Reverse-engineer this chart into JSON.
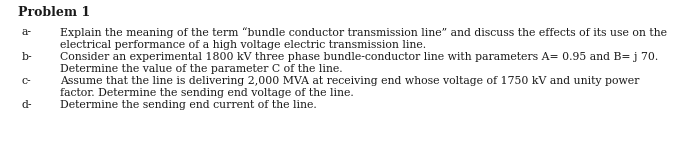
{
  "title": "Problem 1",
  "lines": [
    {
      "label": "a-",
      "text_line1": "Explain the meaning of the term “bundle conductor transmission line” and discuss the effects of its use on the",
      "text_line2": "electrical performance of a high voltage electric transmission line."
    },
    {
      "label": "b-",
      "text_line1": "Consider an experimental 1800 kV three phase bundle-conductor line with parameters A= 0.95 and B= j 70.",
      "text_line2": "Determine the value of the parameter C of the line."
    },
    {
      "label": "c-",
      "text_line1": "Assume that the line is delivering 2,000 MVA at receiving end whose voltage of 1750 kV and unity power",
      "text_line2": "factor. Determine the sending end voltage of the line."
    },
    {
      "label": "d-",
      "text_line1": "Determine the sending end current of the line.",
      "text_line2": ""
    }
  ],
  "background_color": "#ffffff",
  "text_color": "#1a1a1a",
  "font_size": 7.8,
  "title_font_size": 9.0,
  "figwidth": 6.79,
  "figheight": 1.58
}
